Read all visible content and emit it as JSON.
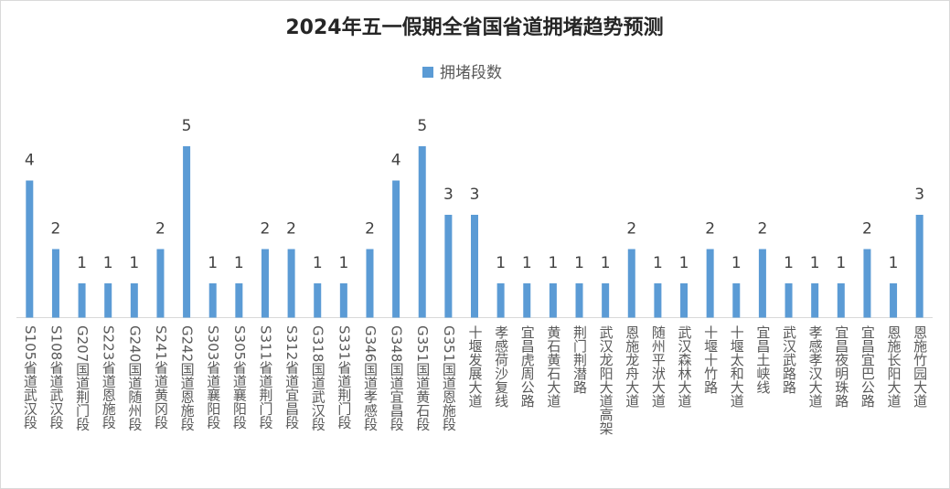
{
  "chart_data": {
    "type": "bar",
    "title": "2024年五一假期全省国省道拥堵趋势预测",
    "categories": [
      "S105省道武汉段",
      "S108省道武汉段",
      "G207国道荆门段",
      "S223省道恩施段",
      "G240国道随州段",
      "S241省道黄冈段",
      "G242国道恩施段",
      "S303省道襄阳段",
      "S305省道襄阳段",
      "S311省道荆门段",
      "S312省道宜昌段",
      "G318国道武汉段",
      "S331省道荆门段",
      "G346国道孝感段",
      "G348国道宜昌段",
      "G351国道黄石段",
      "G351国道恩施段",
      "十堰发展大道",
      "孝感荷沙复线",
      "宜昌虎周公路",
      "黄石黄石大道",
      "荆门荆潜路",
      "武汉龙阳大道高架",
      "恩施龙舟大道",
      "随州平洑大道",
      "武汉森林大道",
      "十堰十竹路",
      "十堰太和大道",
      "宜昌土峡线",
      "武汉武路路",
      "孝感孝汉大道",
      "宜昌夜明珠路",
      "宜昌宜巴公路",
      "恩施长阳大道",
      "恩施竹园大道"
    ],
    "series": [
      {
        "name": "拥堵段数",
        "color": "#5b9bd5",
        "values": [
          4,
          2,
          1,
          1,
          1,
          2,
          5,
          1,
          1,
          2,
          2,
          1,
          1,
          2,
          4,
          5,
          3,
          3,
          1,
          1,
          1,
          1,
          1,
          2,
          1,
          1,
          2,
          1,
          2,
          1,
          1,
          1,
          2,
          1,
          3
        ]
      }
    ],
    "ylim": [
      0,
      5
    ],
    "legend": "top"
  }
}
